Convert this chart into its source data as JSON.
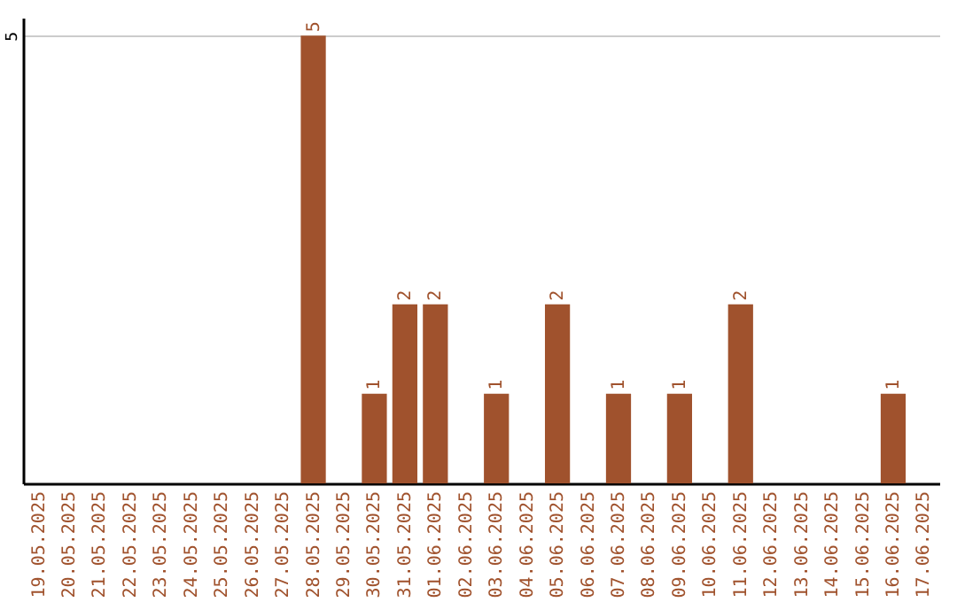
{
  "chart_data": {
    "type": "bar",
    "categories": [
      "19.05.2025",
      "20.05.2025",
      "21.05.2025",
      "22.05.2025",
      "23.05.2025",
      "24.05.2025",
      "25.05.2025",
      "26.05.2025",
      "27.05.2025",
      "28.05.2025",
      "29.05.2025",
      "30.05.2025",
      "31.05.2025",
      "01.06.2025",
      "02.06.2025",
      "03.06.2025",
      "04.06.2025",
      "05.06.2025",
      "06.06.2025",
      "07.06.2025",
      "08.06.2025",
      "09.06.2025",
      "10.06.2025",
      "11.06.2025",
      "12.06.2025",
      "13.06.2025",
      "14.06.2025",
      "15.06.2025",
      "16.06.2025",
      "17.06.2025"
    ],
    "values": [
      null,
      null,
      null,
      null,
      null,
      null,
      null,
      null,
      null,
      5,
      null,
      1,
      2,
      2,
      null,
      1,
      null,
      2,
      null,
      1,
      null,
      1,
      null,
      2,
      null,
      null,
      null,
      null,
      1,
      null
    ],
    "color": "#a0522d",
    "ylim": [
      0,
      5.2
    ],
    "yticks": [
      5
    ],
    "grid": "y",
    "data_labels": true
  }
}
